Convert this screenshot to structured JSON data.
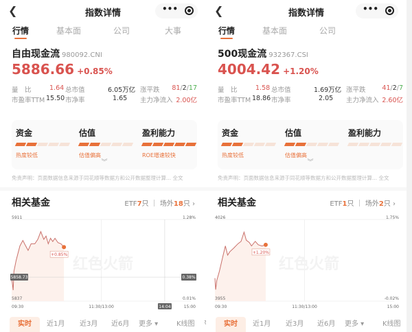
{
  "accent": "#e8713a",
  "up_color": "#d9534f",
  "down_color": "#4caf50",
  "panels": [
    {
      "nav": {
        "title": "指数详情",
        "back_icon": "chevron-left",
        "more_icon": "more-dots",
        "close_icon": "record-circle"
      },
      "tabs": [
        "行情",
        "基本面",
        "公司",
        "大事"
      ],
      "index": {
        "name": "自由现金流",
        "code": "980092.CNI",
        "price": "5886.66",
        "change": "+0.85%"
      },
      "stats": {
        "lb_label": "量　比",
        "lb": "1.64",
        "mcap_label": "总市值",
        "mcap": "6.05万亿",
        "adv_label": "涨平跌",
        "adv_up": "81",
        "adv_flat": "2",
        "adv_down": "17",
        "pe_label": "市盈率TTM",
        "pe": "15.50",
        "pb_label": "市净率",
        "pb": "1.65",
        "flow_label": "主力净流入",
        "flow": "2.00亿"
      },
      "card": [
        {
          "title": "资金",
          "level": 2,
          "tag": "热度较低"
        },
        {
          "title": "估值",
          "level": 2,
          "tag": "估值偏高"
        },
        {
          "title": "盈利能力",
          "level": 5,
          "tag": "ROE增速较快"
        }
      ],
      "disclaimer": "免责声明：页面数据信息来源于同花顺等数据方和公开数据整理计算... 全文",
      "funds": {
        "title": "相关基金",
        "etf_label": "ETF",
        "etf": "7",
        "etf_unit": "只",
        "otc_label": "场外",
        "otc": "18",
        "otc_unit": "只"
      },
      "chart_data": {
        "type": "line",
        "ylim": [
          5837,
          5911
        ],
        "y_ticks": [
          "5911",
          "5837"
        ],
        "y2_ticks": [
          "1.28%",
          "0.01%"
        ],
        "x_ticks": [
          "09:30",
          "11:30/13:00",
          "15:00"
        ],
        "crosshair_value": "5858.73",
        "crosshair_pct": "0.38%",
        "crosshair_time": "14:04",
        "last_label": "+0.85%",
        "watermark": "红色火箭",
        "points": [
          [
            0,
            5858
          ],
          [
            2,
            5847
          ],
          [
            3,
            5864
          ],
          [
            6,
            5874
          ],
          [
            11,
            5887
          ],
          [
            15,
            5892
          ],
          [
            18,
            5888
          ],
          [
            22,
            5883
          ],
          [
            26,
            5889
          ],
          [
            31,
            5889
          ],
          [
            35,
            5893
          ],
          [
            39,
            5900
          ],
          [
            43,
            5893
          ],
          [
            46,
            5896
          ],
          [
            49,
            5889
          ],
          [
            52,
            5894
          ],
          [
            55,
            5891
          ],
          [
            58,
            5894
          ],
          [
            62,
            5890
          ],
          [
            66,
            5889
          ],
          [
            70,
            5886
          ]
        ]
      },
      "periods": [
        "实时",
        "近1月",
        "近3月",
        "近6月",
        "更多 ▾",
        "K线图"
      ]
    },
    {
      "nav": {
        "title": "指数详情",
        "back_icon": "chevron-left",
        "more_icon": "more-dots",
        "close_icon": "record-circle"
      },
      "tabs": [
        "行情",
        "基本面",
        "公司"
      ],
      "index": {
        "name": "500现金流",
        "code": "932367.CSI",
        "price": "4004.42",
        "change": "+1.20%"
      },
      "stats": {
        "lb_label": "量　比",
        "lb": "1.58",
        "mcap_label": "总市值",
        "mcap": "1.69万亿",
        "adv_label": "涨平跌",
        "adv_up": "41",
        "adv_flat": "2",
        "adv_down": "7",
        "pe_label": "市盈率TTM",
        "pe": "18.86",
        "pb_label": "市净率",
        "pb": "2.05",
        "flow_label": "主力净流入",
        "flow": "2.60亿"
      },
      "card": [
        {
          "title": "资金",
          "level": 2,
          "tag": "热度较低"
        },
        {
          "title": "估值",
          "level": 2,
          "tag": "估值偏高"
        },
        {
          "title": "盈利能力",
          "level": 0,
          "tag": ""
        }
      ],
      "disclaimer": "免责声明：页面数据信息来源于同花顺等数据方和公开数据整理计算... 全文",
      "funds": {
        "title": "相关基金",
        "etf_label": "ETF",
        "etf": "1",
        "etf_unit": "只",
        "otc_label": "场外",
        "otc": "2",
        "otc_unit": "只"
      },
      "chart_data": {
        "type": "line",
        "ylim": [
          3955,
          4026
        ],
        "y_ticks": [
          "4026",
          "3955"
        ],
        "y2_ticks": [
          "1.75%",
          "-0.02%"
        ],
        "x_ticks": [
          "09:30",
          "11:30/13:00",
          "15:00"
        ],
        "last_label": "+1.20%",
        "watermark": "红色火箭",
        "points": [
          [
            0,
            3975
          ],
          [
            1,
            3965
          ],
          [
            2.5,
            3973
          ],
          [
            6,
            3981
          ],
          [
            11,
            3995
          ],
          [
            14,
            4003
          ],
          [
            17,
            3995
          ],
          [
            20,
            3998
          ],
          [
            25,
            4001
          ],
          [
            31,
            4005
          ],
          [
            35,
            4007
          ],
          [
            39,
            4015
          ],
          [
            42,
            4008
          ],
          [
            46,
            4006
          ],
          [
            49,
            4003
          ],
          [
            54,
            4007
          ],
          [
            58,
            4004
          ],
          [
            63,
            4003
          ],
          [
            68,
            4004
          ]
        ]
      },
      "periods": [
        "实时",
        "近1月",
        "近3月",
        "近6月",
        "更多 ▾",
        "K线图"
      ]
    }
  ]
}
